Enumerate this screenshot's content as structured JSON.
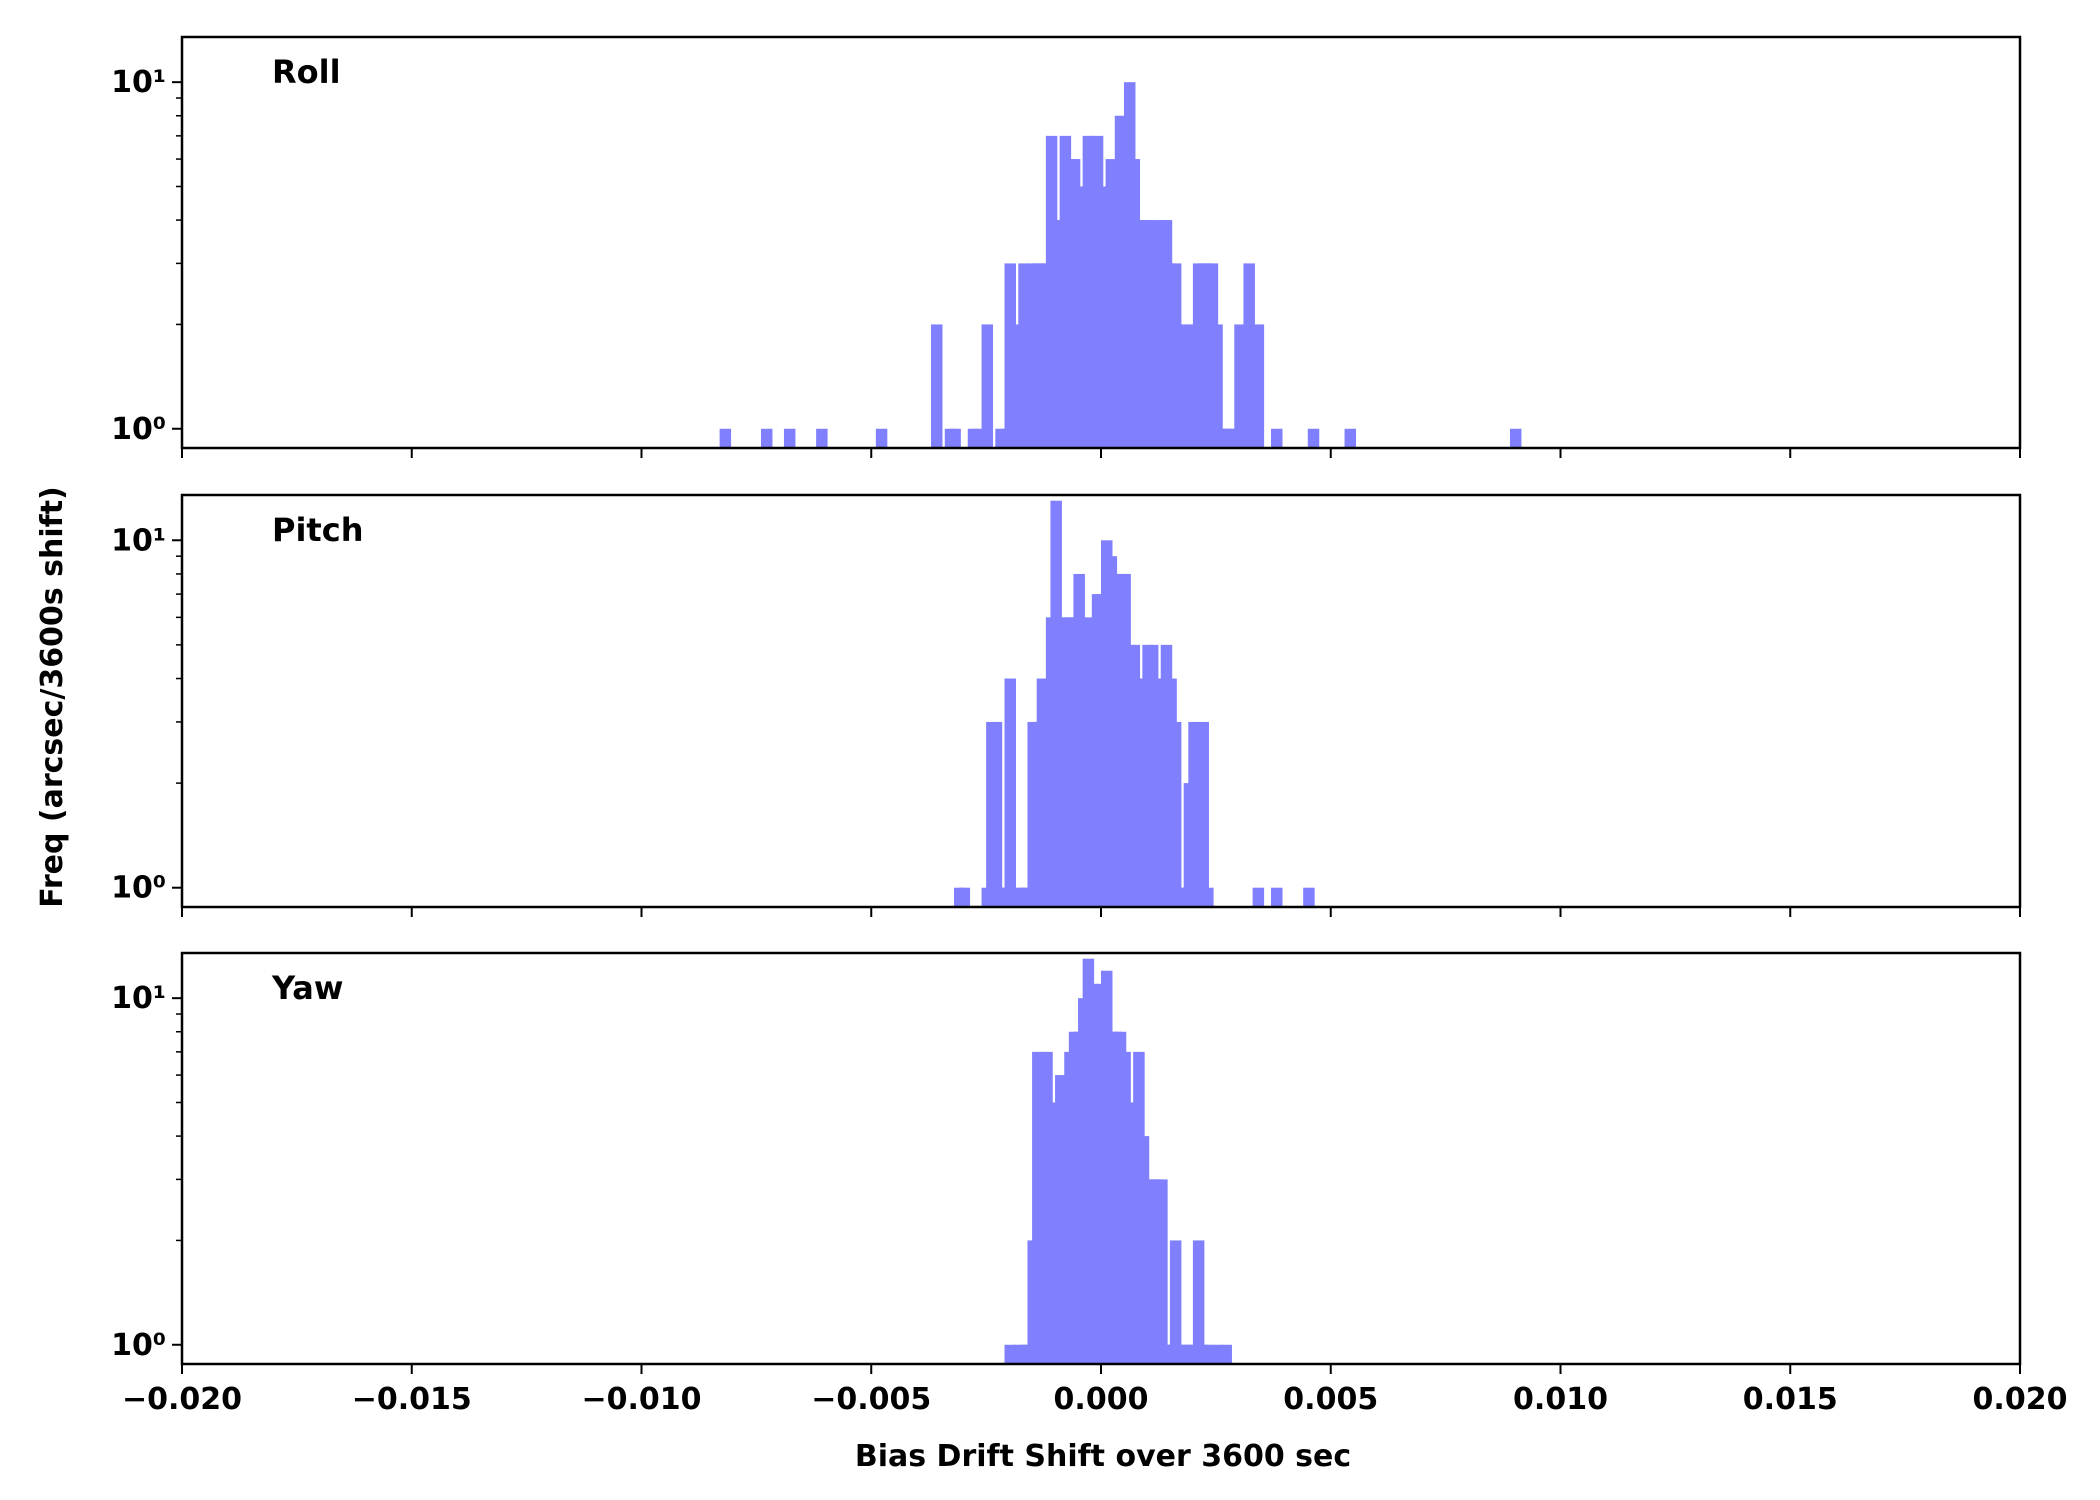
{
  "chart_data": {
    "type": "bar",
    "bin_width": 0.00025,
    "xlim": [
      -0.02,
      0.02
    ],
    "yscale": "log",
    "ylim": [
      0.88,
      13.5
    ],
    "xlabel": "Bias Drift Shift over 3600 sec",
    "ylabel": "Freq (arcsec/3600s shift)",
    "bar_color": "#8080ff",
    "x_ticks": [
      {
        "value": -0.02,
        "label": "−0.020"
      },
      {
        "value": -0.015,
        "label": "−0.015"
      },
      {
        "value": -0.01,
        "label": "−0.010"
      },
      {
        "value": -0.005,
        "label": "−0.005"
      },
      {
        "value": 0.0,
        "label": "0.000"
      },
      {
        "value": 0.005,
        "label": "0.005"
      },
      {
        "value": 0.01,
        "label": "0.010"
      },
      {
        "value": 0.015,
        "label": "0.015"
      },
      {
        "value": 0.02,
        "label": "0.020"
      }
    ],
    "y_ticks": [
      {
        "value": 1,
        "label": "10⁰"
      },
      {
        "value": 10,
        "label": "10¹"
      }
    ],
    "panels": [
      {
        "label": "Roll",
        "bins": [
          [
            -0.0083,
            1
          ],
          [
            -0.0074,
            1
          ],
          [
            -0.0069,
            1
          ],
          [
            -0.0062,
            1
          ],
          [
            -0.0049,
            1
          ],
          [
            -0.0037,
            2
          ],
          [
            -0.0034,
            1
          ],
          [
            -0.0033,
            1
          ],
          [
            -0.0029,
            1
          ],
          [
            -0.0028,
            1
          ],
          [
            -0.0026,
            2
          ],
          [
            -0.0023,
            1
          ],
          [
            -0.0022,
            1
          ],
          [
            -0.0021,
            3
          ],
          [
            -0.002,
            1
          ],
          [
            -0.0019,
            2
          ],
          [
            -0.0018,
            3
          ],
          [
            -0.0017,
            1
          ],
          [
            -0.0016,
            3
          ],
          [
            -0.0015,
            3
          ],
          [
            -0.0014,
            3
          ],
          [
            -0.0013,
            3
          ],
          [
            -0.0012,
            7
          ],
          [
            -0.0011,
            4
          ],
          [
            -0.001,
            1
          ],
          [
            -0.0009,
            7
          ],
          [
            -0.0008,
            6
          ],
          [
            -0.0007,
            6
          ],
          [
            -0.0006,
            5
          ],
          [
            -0.0005,
            2
          ],
          [
            -0.0004,
            7
          ],
          [
            -0.0003,
            4
          ],
          [
            -0.0002,
            7
          ],
          [
            -0.0001,
            4
          ],
          [
            0.0,
            5
          ],
          [
            0.0001,
            6
          ],
          [
            0.0002,
            4
          ],
          [
            0.0003,
            8
          ],
          [
            0.0004,
            6
          ],
          [
            0.0005,
            10
          ],
          [
            0.0006,
            6
          ],
          [
            0.0007,
            4
          ],
          [
            0.0008,
            4
          ],
          [
            0.0009,
            4
          ],
          [
            0.001,
            4
          ],
          [
            0.0011,
            2
          ],
          [
            0.0012,
            4
          ],
          [
            0.0013,
            4
          ],
          [
            0.0014,
            3
          ],
          [
            0.0015,
            3
          ],
          [
            0.0016,
            2
          ],
          [
            0.0017,
            1
          ],
          [
            0.0018,
            2
          ],
          [
            0.0019,
            2
          ],
          [
            0.002,
            3
          ],
          [
            0.0021,
            3
          ],
          [
            0.0022,
            3
          ],
          [
            0.0023,
            3
          ],
          [
            0.0024,
            2
          ],
          [
            0.0025,
            1
          ],
          [
            0.0026,
            1
          ],
          [
            0.0027,
            1
          ],
          [
            0.0028,
            1
          ],
          [
            0.0029,
            2
          ],
          [
            0.003,
            1
          ],
          [
            0.0031,
            3
          ],
          [
            0.0032,
            1
          ],
          [
            0.0033,
            2
          ],
          [
            0.0037,
            1
          ],
          [
            0.0045,
            1
          ],
          [
            0.0053,
            1
          ],
          [
            0.0089,
            1
          ]
        ]
      },
      {
        "label": "Pitch",
        "bins": [
          [
            -0.0032,
            1
          ],
          [
            -0.0031,
            1
          ],
          [
            -0.0026,
            1
          ],
          [
            -0.0025,
            3
          ],
          [
            -0.0024,
            3
          ],
          [
            -0.0023,
            1
          ],
          [
            -0.0022,
            1
          ],
          [
            -0.0021,
            4
          ],
          [
            -0.0019,
            1
          ],
          [
            -0.0018,
            1
          ],
          [
            -0.0017,
            1
          ],
          [
            -0.0016,
            3
          ],
          [
            -0.0015,
            3
          ],
          [
            -0.0014,
            4
          ],
          [
            -0.0013,
            4
          ],
          [
            -0.0012,
            6
          ],
          [
            -0.0011,
            13
          ],
          [
            -0.001,
            5
          ],
          [
            -0.0009,
            6
          ],
          [
            -0.0008,
            6
          ],
          [
            -0.0007,
            6
          ],
          [
            -0.0006,
            8
          ],
          [
            -0.0005,
            5
          ],
          [
            -0.0004,
            6
          ],
          [
            -0.0003,
            5
          ],
          [
            -0.0002,
            7
          ],
          [
            -0.0001,
            7
          ],
          [
            0.0,
            10
          ],
          [
            0.0001,
            9
          ],
          [
            0.0002,
            8
          ],
          [
            0.0003,
            8
          ],
          [
            0.0004,
            8
          ],
          [
            0.0005,
            5
          ],
          [
            0.0006,
            5
          ],
          [
            0.0007,
            4
          ],
          [
            0.0008,
            4
          ],
          [
            0.0009,
            5
          ],
          [
            0.001,
            5
          ],
          [
            0.0011,
            3
          ],
          [
            0.0012,
            4
          ],
          [
            0.0013,
            5
          ],
          [
            0.0014,
            4
          ],
          [
            0.0015,
            3
          ],
          [
            0.0016,
            1
          ],
          [
            0.0017,
            1
          ],
          [
            0.0018,
            2
          ],
          [
            0.0019,
            3
          ],
          [
            0.002,
            1
          ],
          [
            0.0021,
            3
          ],
          [
            0.0022,
            1
          ],
          [
            0.0033,
            1
          ],
          [
            0.0037,
            1
          ],
          [
            0.0044,
            1
          ]
        ]
      },
      {
        "label": "Yaw",
        "bins": [
          [
            -0.0021,
            1
          ],
          [
            -0.0019,
            1
          ],
          [
            -0.0018,
            1
          ],
          [
            -0.0017,
            1
          ],
          [
            -0.0016,
            2
          ],
          [
            -0.0015,
            7
          ],
          [
            -0.0014,
            1
          ],
          [
            -0.0013,
            7
          ],
          [
            -0.0012,
            5
          ],
          [
            -0.0011,
            5
          ],
          [
            -0.001,
            6
          ],
          [
            -0.0009,
            5
          ],
          [
            -0.0008,
            7
          ],
          [
            -0.0007,
            8
          ],
          [
            -0.0006,
            8
          ],
          [
            -0.0005,
            10
          ],
          [
            -0.0004,
            13
          ],
          [
            -0.0003,
            11
          ],
          [
            -0.0002,
            10
          ],
          [
            -0.0001,
            11
          ],
          [
            0.0,
            12
          ],
          [
            0.0001,
            8
          ],
          [
            0.0002,
            8
          ],
          [
            0.0003,
            8
          ],
          [
            0.0004,
            7
          ],
          [
            0.0005,
            5
          ],
          [
            0.0006,
            5
          ],
          [
            0.0007,
            7
          ],
          [
            0.0008,
            4
          ],
          [
            0.0009,
            3
          ],
          [
            0.001,
            3
          ],
          [
            0.0011,
            3
          ],
          [
            0.0012,
            3
          ],
          [
            0.0013,
            1
          ],
          [
            0.0014,
            1
          ],
          [
            0.0015,
            2
          ],
          [
            0.0016,
            1
          ],
          [
            0.0017,
            1
          ],
          [
            0.0018,
            1
          ],
          [
            0.0019,
            1
          ],
          [
            0.002,
            2
          ],
          [
            0.0021,
            1
          ],
          [
            0.0022,
            1
          ],
          [
            0.0024,
            1
          ],
          [
            0.0026,
            1
          ]
        ]
      }
    ]
  }
}
